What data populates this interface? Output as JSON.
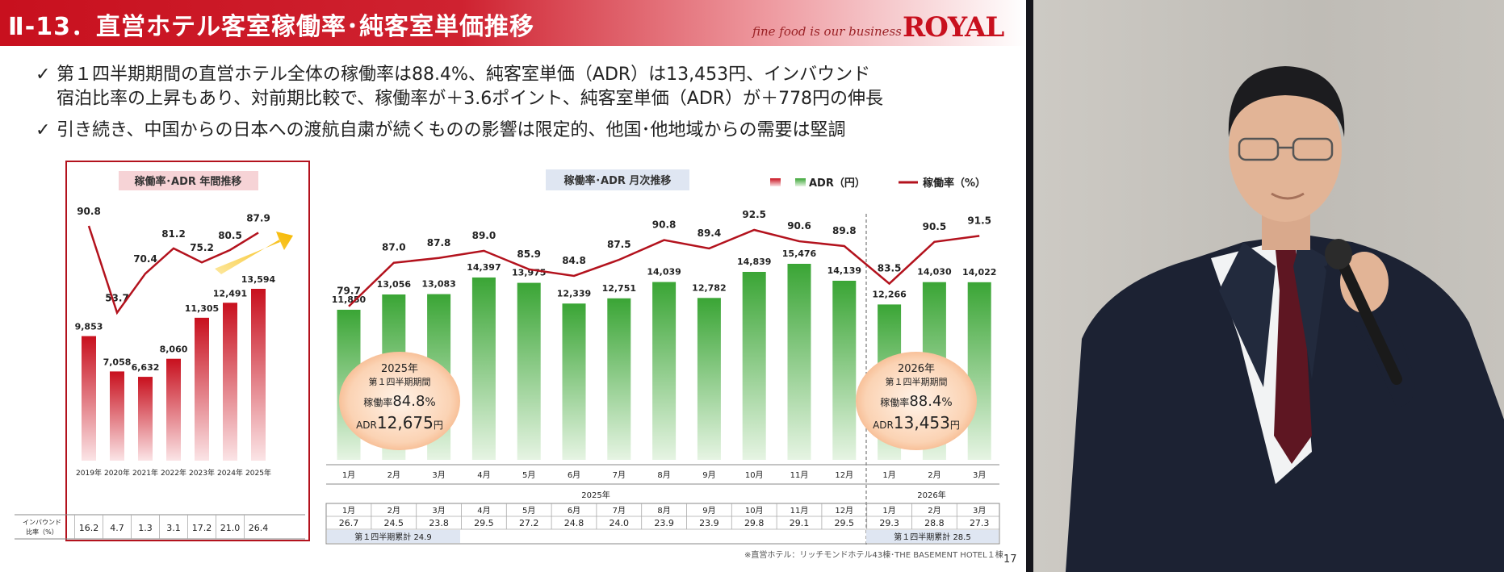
{
  "header": {
    "title": "Ⅱ-13．直営ホテル客室稼働率･純客室単価推移",
    "tagline": "fine food is our business",
    "logo": "ROYAL"
  },
  "bullets": [
    "第１四半期期間の直営ホテル全体の稼働率は88.4%、純客室単価（ADR）は13,453円、インバウンド",
    "宿泊比率の上昇もあり、対前期比較で、稼働率が＋3.6ポイント、純客室単価（ADR）が＋778円の伸長",
    "引き続き、中国からの日本への渡航自粛が続くものの影響は限定的、他国･他地域からの需要は堅調"
  ],
  "check_icon": "check-icon",
  "footnote": "※直営ホテル：リッチモンドホテル43棟･THE BASEMENT HOTEL１棟",
  "page_number": "17",
  "chart_data": [
    {
      "type": "bar",
      "title": "稼働率･ADR 年間推移",
      "categories": [
        "2019年",
        "2020年",
        "2021年",
        "2022年",
        "2023年",
        "2024年",
        "2025年"
      ],
      "series": [
        {
          "name": "ADR（円）",
          "type": "bar",
          "values": [
            9853,
            7058,
            6632,
            8060,
            11305,
            12491,
            13594
          ],
          "labels": [
            "9,853",
            "7,058",
            "6,632",
            "8,060",
            "11,305",
            "12,491",
            "13,594"
          ],
          "color": "#c8101e"
        },
        {
          "name": "稼働率（%）",
          "type": "line",
          "values": [
            90.8,
            53.7,
            70.4,
            81.2,
            75.2,
            80.5,
            87.9
          ],
          "labels": [
            "90.8",
            "53.7",
            "70.4",
            "81.2",
            "75.2",
            "80.5",
            "87.9"
          ],
          "color": "#b3121d"
        }
      ],
      "table": {
        "row_label": "インバウンド比率（%）",
        "values": [
          "16.2",
          "4.7",
          "1.3",
          "3.1",
          "17.2",
          "21.0",
          "26.4"
        ]
      },
      "trend_arrow": "up-right-arrow-icon"
    },
    {
      "type": "bar",
      "title": "稼働率･ADR 月次推移",
      "legend": {
        "adr": "ADR（円）",
        "occ": "稼働率（%）",
        "placement": "top-right"
      },
      "categories": [
        "1月",
        "2月",
        "3月",
        "4月",
        "5月",
        "6月",
        "7月",
        "8月",
        "9月",
        "10月",
        "11月",
        "12月",
        "1月",
        "2月",
        "3月"
      ],
      "year_groups": [
        {
          "label": "2025年",
          "span": 12
        },
        {
          "label": "2026年",
          "span": 3
        }
      ],
      "series": [
        {
          "name": "ADR（円）",
          "type": "bar",
          "values": [
            11850,
            13056,
            13083,
            14397,
            13975,
            12339,
            12751,
            14039,
            12782,
            14839,
            15476,
            14139,
            12266,
            14030,
            14022
          ],
          "labels": [
            "11,850",
            "13,056",
            "13,083",
            "14,397",
            "13,975",
            "12,339",
            "12,751",
            "14,039",
            "12,782",
            "14,839",
            "15,476",
            "14,139",
            "12,266",
            "14,030",
            "14,022"
          ],
          "color": "#3aa535"
        },
        {
          "name": "稼働率（%）",
          "type": "line",
          "values": [
            79.7,
            87.0,
            87.8,
            89.0,
            85.9,
            84.8,
            87.5,
            90.8,
            89.4,
            92.5,
            90.6,
            89.8,
            83.5,
            90.5,
            91.5
          ],
          "labels": [
            "79.7",
            "87.0",
            "87.8",
            "89.0",
            "85.9",
            "84.8",
            "87.5",
            "90.8",
            "89.4",
            "92.5",
            "90.6",
            "89.8",
            "83.5",
            "90.5",
            "91.5"
          ],
          "color": "#b3121d"
        }
      ],
      "table": {
        "months": [
          "1月",
          "2月",
          "3月",
          "4月",
          "5月",
          "6月",
          "7月",
          "8月",
          "9月",
          "10月",
          "11月",
          "12月",
          "1月",
          "2月",
          "3月"
        ],
        "values": [
          "26.7",
          "24.5",
          "23.8",
          "29.5",
          "27.2",
          "24.8",
          "24.0",
          "23.9",
          "23.9",
          "29.8",
          "29.1",
          "29.5",
          "29.3",
          "28.8",
          "27.3"
        ],
        "q1_2025": "第１四半期累計 24.9",
        "q1_2026": "第１四半期累計 28.5"
      },
      "callouts": [
        {
          "year": "2025年",
          "period": "第１四半期期間",
          "occ_label": "稼働率",
          "occ_value": "84.8",
          "occ_unit": "%",
          "adr_label": "ADR",
          "adr_value": "12,675",
          "adr_unit": "円"
        },
        {
          "year": "2026年",
          "period": "第１四半期期間",
          "occ_label": "稼働率",
          "occ_value": "88.4",
          "occ_unit": "%",
          "adr_label": "ADR",
          "adr_value": "13,453",
          "adr_unit": "円"
        }
      ]
    }
  ]
}
